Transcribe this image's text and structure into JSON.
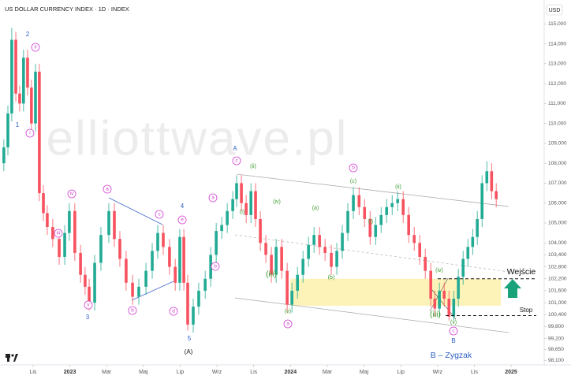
{
  "chart_data": {
    "type": "candlestick",
    "title": "US DOLLAR CURRENCY INDEX · 1D · INDEX",
    "currency": "USD",
    "watermark": "elliottwave.pl",
    "up_color": "#22ab94",
    "down_color": "#f7525f",
    "xlim": [
      -1.8,
      27.8
    ],
    "ylim": [
      97.6,
      116.0
    ],
    "xticks": [
      {
        "value": 0,
        "label": "Lis"
      },
      {
        "value": 2,
        "label": "2023"
      },
      {
        "value": 4,
        "label": "Mar"
      },
      {
        "value": 6,
        "label": "Maj"
      },
      {
        "value": 8,
        "label": "Lip"
      },
      {
        "value": 10,
        "label": "Wrz"
      },
      {
        "value": 12,
        "label": "Lis"
      },
      {
        "value": 14,
        "label": "2024"
      },
      {
        "value": 16,
        "label": "Mar"
      },
      {
        "value": 18,
        "label": "Maj"
      },
      {
        "value": 20,
        "label": "Lip"
      },
      {
        "value": 22,
        "label": "Wrz"
      },
      {
        "value": 24,
        "label": "Lis"
      },
      {
        "value": 26,
        "label": "2025"
      }
    ],
    "yticks": [
      {
        "value": 115,
        "label": "115,000"
      },
      {
        "value": 114,
        "label": "114,000"
      },
      {
        "value": 113,
        "label": "113,000"
      },
      {
        "value": 112,
        "label": "112,000"
      },
      {
        "value": 111,
        "label": "111,000"
      },
      {
        "value": 110,
        "label": "110,000"
      },
      {
        "value": 109,
        "label": "109,000"
      },
      {
        "value": 108,
        "label": "108,000"
      },
      {
        "value": 107,
        "label": "107,000"
      },
      {
        "value": 106,
        "label": "106,000"
      },
      {
        "value": 105,
        "label": "105,000"
      },
      {
        "value": 104,
        "label": "104,000"
      },
      {
        "value": 103.4,
        "label": "103,400"
      },
      {
        "value": 102.8,
        "label": "102,800"
      },
      {
        "value": 102.2,
        "label": "102,200"
      },
      {
        "value": 101.6,
        "label": "101,600"
      },
      {
        "value": 101,
        "label": "101,000"
      },
      {
        "value": 100.4,
        "label": "100,400"
      },
      {
        "value": 99.8,
        "label": "99,800"
      },
      {
        "value": 99.2,
        "label": "99,200"
      },
      {
        "value": 98.65,
        "label": "98,650"
      },
      {
        "value": 98.1,
        "label": "98,100"
      }
    ],
    "x": [
      -1.59,
      -1.37,
      -1.16,
      -0.94,
      -0.73,
      -0.52,
      -0.3,
      -0.09,
      0.13,
      0.34,
      0.56,
      0.77,
      1.07,
      1.42,
      1.72,
      1.97,
      2.27,
      2.58,
      2.83,
      3.05,
      3.35,
      3.69,
      4.12,
      4.42,
      4.72,
      5.06,
      5.41,
      5.75,
      6.14,
      6.48,
      6.78,
      7.08,
      7.42,
      7.73,
      7.98,
      8.2,
      8.41,
      8.71,
      9.01,
      9.36,
      9.66,
      9.96,
      10.26,
      10.56,
      10.86,
      11.07,
      11.33,
      11.59,
      11.85,
      12.1,
      12.36,
      12.66,
      12.96,
      13.22,
      13.52,
      13.82,
      14.08,
      14.38,
      14.68,
      14.98,
      15.28,
      15.58,
      15.88,
      16.22,
      16.52,
      16.82,
      17.12,
      17.42,
      17.73,
      18.03,
      18.33,
      18.63,
      18.93,
      19.23,
      19.53,
      19.83,
      20.13,
      20.43,
      20.73,
      21.03,
      21.33,
      21.63,
      21.85,
      22.1,
      22.36,
      22.62,
      22.88,
      23.13,
      23.39,
      23.65,
      23.91,
      24.16,
      24.42,
      24.68,
      24.94,
      25.19
    ],
    "open": [
      108.0,
      108.8,
      110.5,
      114.2,
      111.5,
      111.0,
      113.3,
      111.8,
      110.0,
      112.6,
      106.5,
      105.5,
      104.8,
      104.2,
      103.3,
      104.5,
      105.6,
      103.5,
      102.4,
      101.8,
      101.0,
      103.0,
      104.4,
      105.6,
      104.2,
      103.2,
      102.0,
      101.3,
      101.8,
      102.6,
      103.6,
      104.5,
      103.8,
      102.8,
      102.0,
      104.3,
      102.0,
      99.9,
      100.8,
      101.6,
      102.2,
      103.4,
      104.6,
      104.9,
      105.6,
      106.2,
      107.0,
      106.0,
      105.4,
      106.6,
      105.2,
      104.0,
      103.4,
      102.4,
      103.8,
      102.6,
      100.9,
      101.6,
      102.4,
      103.2,
      103.9,
      104.4,
      103.8,
      103.5,
      102.8,
      103.6,
      104.5,
      105.6,
      106.4,
      105.8,
      105.2,
      104.3,
      104.9,
      105.4,
      105.8,
      106.0,
      106.2,
      105.4,
      104.4,
      104.0,
      103.3,
      102.6,
      101.2,
      100.7,
      101.6,
      101.2,
      100.3,
      101.2,
      102.3,
      103.2,
      103.8,
      104.3,
      105.2,
      107.0,
      107.6,
      106.6
    ],
    "high": [
      109.2,
      110.9,
      114.8,
      114.6,
      111.9,
      113.7,
      113.7,
      112.2,
      113.0,
      113.0,
      106.9,
      105.9,
      105.2,
      104.6,
      104.9,
      106.0,
      106.0,
      103.9,
      102.8,
      102.2,
      103.4,
      104.8,
      106.0,
      106.0,
      104.6,
      103.6,
      102.4,
      102.2,
      103.0,
      104.0,
      104.9,
      104.9,
      104.2,
      103.2,
      104.7,
      104.7,
      102.4,
      101.2,
      102.0,
      102.6,
      103.8,
      105.0,
      105.3,
      106.0,
      106.6,
      107.4,
      107.4,
      106.4,
      107.0,
      107.0,
      105.6,
      104.4,
      103.8,
      104.2,
      104.2,
      103.0,
      102.0,
      102.8,
      103.6,
      104.3,
      104.8,
      104.8,
      104.2,
      103.9,
      104.0,
      104.9,
      106.0,
      106.8,
      106.8,
      106.2,
      105.6,
      105.3,
      105.8,
      106.2,
      106.4,
      106.6,
      106.6,
      105.8,
      104.8,
      104.4,
      103.7,
      103.0,
      101.6,
      102.0,
      102.0,
      101.6,
      101.6,
      102.7,
      103.6,
      104.2,
      104.7,
      105.6,
      107.4,
      108.1,
      108.0,
      107.0
    ],
    "low": [
      107.6,
      108.4,
      110.1,
      111.1,
      110.6,
      110.6,
      111.4,
      109.6,
      109.6,
      106.1,
      105.1,
      104.4,
      103.8,
      102.9,
      102.9,
      104.1,
      103.1,
      102.0,
      101.4,
      100.6,
      100.6,
      102.6,
      104.0,
      103.8,
      102.8,
      101.6,
      100.9,
      100.9,
      101.4,
      102.2,
      103.2,
      103.4,
      102.4,
      101.6,
      101.6,
      101.6,
      99.6,
      99.5,
      100.4,
      101.2,
      101.8,
      103.0,
      104.2,
      104.5,
      105.2,
      105.8,
      105.6,
      105.0,
      105.0,
      104.8,
      103.6,
      103.0,
      102.0,
      102.0,
      102.2,
      100.5,
      100.5,
      101.2,
      102.0,
      102.8,
      103.5,
      103.4,
      103.1,
      102.4,
      102.4,
      103.2,
      104.1,
      105.2,
      105.4,
      104.8,
      103.9,
      103.9,
      104.5,
      105.0,
      105.4,
      105.6,
      105.0,
      104.0,
      103.6,
      102.9,
      102.2,
      100.8,
      100.3,
      100.3,
      100.8,
      100.1,
      100.1,
      100.8,
      101.9,
      102.8,
      103.4,
      103.9,
      104.8,
      106.6,
      106.2,
      105.8
    ],
    "close": [
      108.8,
      110.5,
      114.2,
      111.5,
      111.0,
      113.3,
      111.8,
      110.0,
      112.6,
      106.5,
      105.5,
      104.8,
      104.2,
      103.3,
      104.5,
      105.6,
      103.5,
      102.4,
      101.8,
      101.0,
      103.0,
      104.4,
      105.6,
      104.2,
      103.2,
      102.0,
      101.3,
      101.8,
      102.6,
      103.6,
      104.5,
      103.8,
      102.8,
      102.0,
      104.3,
      102.0,
      99.9,
      100.8,
      101.6,
      102.2,
      103.4,
      104.6,
      104.9,
      105.6,
      106.2,
      107.0,
      106.0,
      105.4,
      106.6,
      105.2,
      104.0,
      103.4,
      102.4,
      103.8,
      102.6,
      100.9,
      101.6,
      102.4,
      103.2,
      103.9,
      104.4,
      103.8,
      103.5,
      102.8,
      103.6,
      104.5,
      105.6,
      106.4,
      105.8,
      105.2,
      104.3,
      104.9,
      105.4,
      105.8,
      106.0,
      106.2,
      105.4,
      104.4,
      104.0,
      103.3,
      102.6,
      101.2,
      100.7,
      101.6,
      101.2,
      100.3,
      101.2,
      102.3,
      103.2,
      103.8,
      104.3,
      105.2,
      107.0,
      107.6,
      106.6,
      106.2
    ],
    "zone": [
      100.85,
      102.2
    ],
    "zone_color": "#fdf3b8",
    "entry": 102.2,
    "stop": 100.35,
    "annotations": {
      "circled": {
        "color": "#d43fd4",
        "texts": [
          "ii",
          "i",
          "iv",
          "iii",
          "v",
          "a",
          "b",
          "c",
          "d",
          "e",
          "a",
          "b",
          "c",
          "b",
          "a",
          "c"
        ]
      },
      "primary": {
        "color": "#2f5fc4",
        "texts": [
          "1",
          "2",
          "3",
          "4",
          "5",
          "A",
          "B",
          "B – Zygzak"
        ]
      },
      "minor": {
        "color": "#3d9a2f",
        "texts": [
          "(ii)",
          "(i)",
          "(iv)",
          "(iii)",
          "(v)",
          "(a)",
          "(b)",
          "(c)",
          "(ii)",
          "(i)",
          "(iv)",
          "(iii)",
          "(v)"
        ]
      },
      "notes": {
        "color": "#111111",
        "texts": [
          "(A)",
          "Wejście",
          "Stop"
        ]
      }
    }
  }
}
